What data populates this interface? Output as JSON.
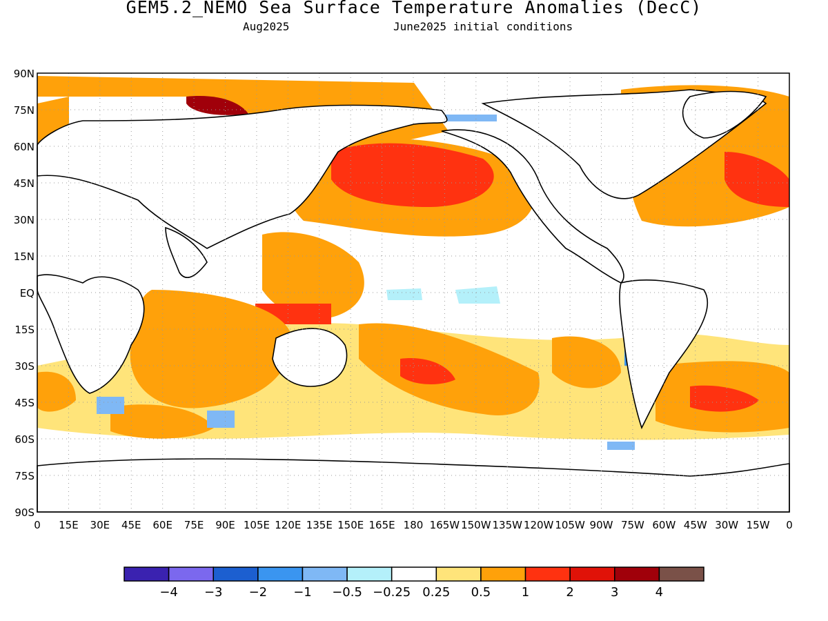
{
  "title": "GEM5.2_NEMO Sea Surface Temperature Anomalies (DecC)",
  "valid_month": "Aug2025",
  "init_label": "June2025 initial conditions",
  "lat_labels": [
    "90N",
    "75N",
    "60N",
    "45N",
    "30N",
    "15N",
    "EQ",
    "15S",
    "30S",
    "45S",
    "60S",
    "75S",
    "90S"
  ],
  "lon_labels": [
    "0",
    "15E",
    "30E",
    "45E",
    "60E",
    "75E",
    "90E",
    "105E",
    "120E",
    "135E",
    "150E",
    "165E",
    "180",
    "165W",
    "150W",
    "135W",
    "120W",
    "105W",
    "90W",
    "75W",
    "60W",
    "45W",
    "30W",
    "15W",
    "0"
  ],
  "colorbar": {
    "colors": [
      "#3a22b0",
      "#7b68ee",
      "#1c5fd0",
      "#3a95f0",
      "#7fb8f5",
      "#b4f0fa",
      "#ffffff",
      "#ffe47a",
      "#ffa10a",
      "#ff3210",
      "#e01208",
      "#a0000a",
      "#7a5148"
    ],
    "labels": [
      "-4",
      "-3",
      "-2",
      "-1",
      "-0.5",
      "-0.25",
      "0.25",
      "0.5",
      "1",
      "2",
      "3",
      "4"
    ]
  }
}
